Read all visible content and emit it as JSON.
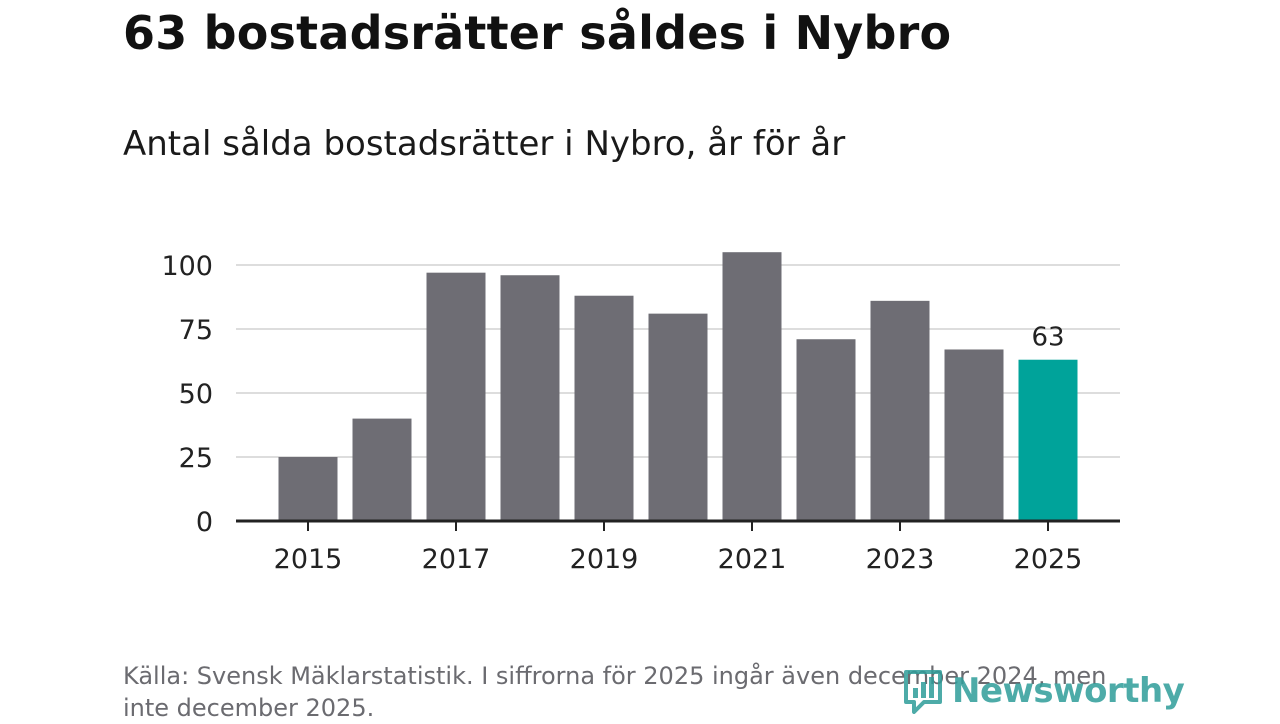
{
  "title": "63 bostadsrätter såldes i Nybro",
  "subtitle": "Antal sålda bostadsrätter i Nybro, år för år",
  "source": "Källa: Svensk Mäklarstatistik. I siffrorna för 2025 ingår även december 2024, men inte december 2025.",
  "logo": {
    "text": "Newsworthy"
  },
  "colors": {
    "bar": "#6e6d74",
    "highlight": "#00a39a",
    "grid": "#dddddd",
    "axis": "#222222",
    "text": "#222222"
  },
  "chart_data": {
    "type": "bar",
    "title": "Antal sålda bostadsrätter i Nybro, år för år",
    "xlabel": "",
    "ylabel": "",
    "categories": [
      "2015",
      "2016",
      "2017",
      "2018",
      "2019",
      "2020",
      "2021",
      "2022",
      "2023",
      "2024",
      "2025"
    ],
    "values": [
      25,
      40,
      97,
      96,
      88,
      81,
      105,
      71,
      86,
      67,
      63
    ],
    "highlight_index": 10,
    "data_labels": [
      {
        "index": 10,
        "text": "63"
      }
    ],
    "ylim": [
      0,
      110
    ],
    "y_ticks": [
      0,
      25,
      50,
      75,
      100
    ],
    "x_tick_labels": [
      "2015",
      "2017",
      "2019",
      "2021",
      "2023",
      "2025"
    ],
    "grid": true,
    "legend": "none"
  }
}
